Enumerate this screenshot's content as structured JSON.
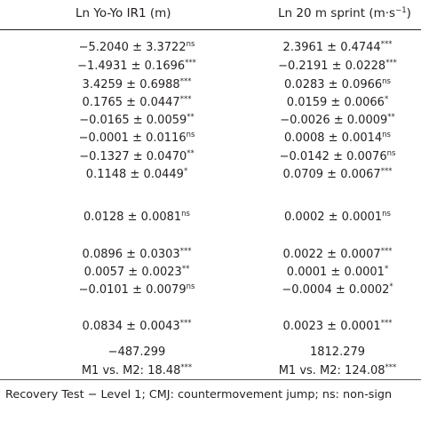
{
  "header": {
    "col1": "Ln Yo-Yo IR1 (m)",
    "col2_prefix": "Ln 20 m sprint (m·s",
    "col2_sup": "−1",
    "col2_suffix": ")"
  },
  "rows": [
    {
      "c1": "−5.2040 ± 3.3722",
      "s1": "ns",
      "c2": "2.3961 ± 0.4744",
      "s2": "***"
    },
    {
      "c1": "−1.4931 ± 0.1696",
      "s1": "***",
      "c2": "−0.2191 ± 0.0228",
      "s2": "***"
    },
    {
      "c1": "3.4259 ± 0.6988",
      "s1": "***",
      "c2": "0.0283 ± 0.0966",
      "s2": "ns"
    },
    {
      "c1": "0.1765 ± 0.0447",
      "s1": "***",
      "c2": "0.0159 ± 0.0066",
      "s2": "*"
    },
    {
      "c1": "−0.0165 ± 0.0059",
      "s1": "**",
      "c2": "−0.0026 ± 0.0009",
      "s2": "**"
    },
    {
      "c1": "−0.0001 ± 0.0116",
      "s1": "ns",
      "c2": "0.0008 ± 0.0014",
      "s2": "ns"
    },
    {
      "c1": "−0.1327 ± 0.0470",
      "s1": "**",
      "c2": "−0.0142 ± 0.0076",
      "s2": "ns"
    },
    {
      "c1": "0.1148 ± 0.0449",
      "s1": "*",
      "c2": "0.0709 ± 0.0067",
      "s2": "***"
    },
    {
      "c1": "0.0128 ± 0.0081",
      "s1": "ns",
      "c2": "0.0002 ± 0.0001",
      "s2": "ns"
    },
    {
      "c1": "0.0896 ± 0.0303",
      "s1": "***",
      "c2": "0.0022 ± 0.0007",
      "s2": "***"
    },
    {
      "c1": "0.0057 ± 0.0023",
      "s1": "**",
      "c2": "0.0001 ± 0.0001",
      "s2": "*"
    },
    {
      "c1": "−0.0101 ± 0.0079",
      "s1": "ns",
      "c2": "−0.0004 ± 0.0002",
      "s2": "*"
    },
    {
      "c1": "0.0834 ± 0.0043",
      "s1": "***",
      "c2": "0.0023 ± 0.0001",
      "s2": "***"
    },
    {
      "c1": "−487.299",
      "s1": "",
      "c2": "1812.279",
      "s2": ""
    },
    {
      "c1": "M1 vs. M2: 18.48",
      "s1": "***",
      "c2": "M1 vs. M2: 124.08",
      "s2": "***"
    }
  ],
  "footnote": "Recovery Test − Level 1; CMJ: countermovement jump; ns: non-sign"
}
